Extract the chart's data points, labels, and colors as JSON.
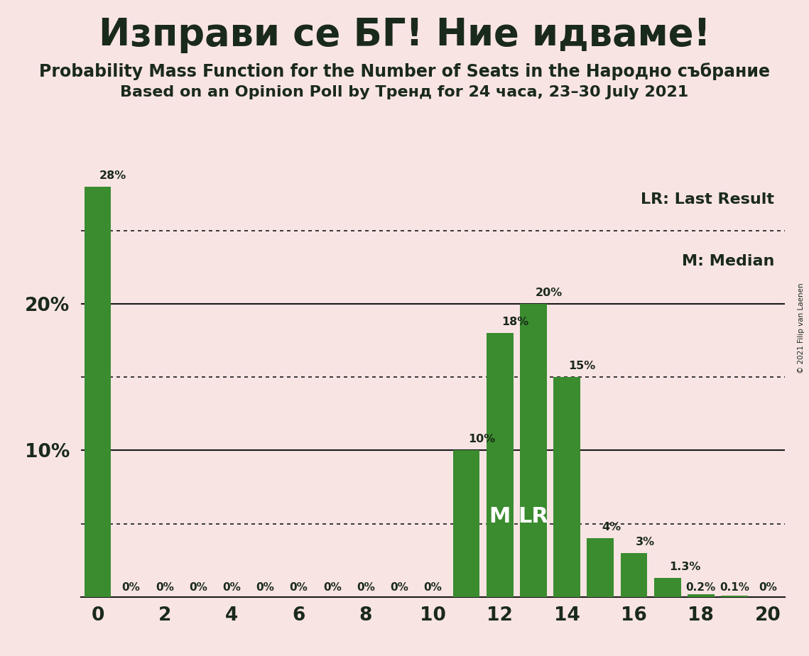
{
  "title": "Изправи се БГ! Ние идваме!",
  "subtitle1": "Probability Mass Function for the Number of Seats in the Народно събрание",
  "subtitle2": "Based on an Opinion Poll by Тренд for 24 часа, 23–30 July 2021",
  "copyright": "© 2021 Filip van Laenen",
  "seats": [
    0,
    1,
    2,
    3,
    4,
    5,
    6,
    7,
    8,
    9,
    10,
    11,
    12,
    13,
    14,
    15,
    16,
    17,
    18,
    19,
    20
  ],
  "values": [
    0.28,
    0.0,
    0.0,
    0.0,
    0.0,
    0.0,
    0.0,
    0.0,
    0.0,
    0.0,
    0.0,
    0.1,
    0.18,
    0.2,
    0.15,
    0.04,
    0.03,
    0.013,
    0.002,
    0.001,
    0.0
  ],
  "labels": [
    "28%",
    "0%",
    "0%",
    "0%",
    "0%",
    "0%",
    "0%",
    "0%",
    "0%",
    "0%",
    "0%",
    "10%",
    "18%",
    "20%",
    "15%",
    "4%",
    "3%",
    "1.3%",
    "0.2%",
    "0.1%",
    "0%"
  ],
  "bar_color": "#3a8c2f",
  "background_color": "#f9e4e4",
  "median_seat": 12,
  "lr_seat": 13,
  "legend_lr": "LR: Last Result",
  "legend_m": "M: Median",
  "xlim": [
    -0.5,
    20.5
  ],
  "ylim": [
    0,
    0.3
  ],
  "solid_gridlines": [
    0.1,
    0.2
  ],
  "dotted_gridlines": [
    0.05,
    0.15,
    0.25
  ],
  "title_fontsize": 38,
  "subtitle_fontsize": 17,
  "bar_width": 0.8,
  "ytick_labels": [
    "10%",
    "20%"
  ],
  "ytick_values": [
    0.1,
    0.2
  ],
  "text_color": "#1a2a1a"
}
